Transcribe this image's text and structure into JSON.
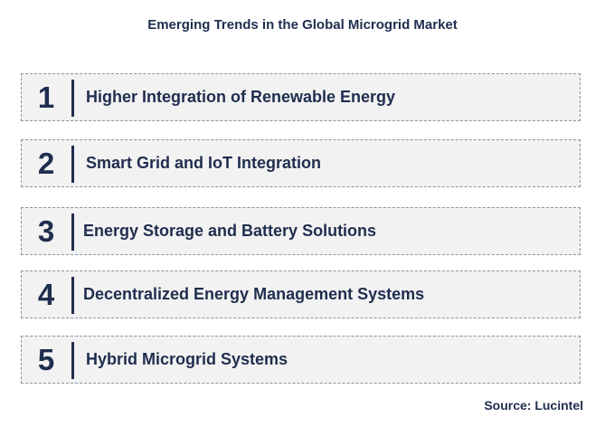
{
  "title": "Emerging Trends in the Global Microgrid Market",
  "trends": [
    {
      "number": "1",
      "label": "Higher Integration of Renewable Energy"
    },
    {
      "number": "2",
      "label": "Smart Grid and IoT Integration"
    },
    {
      "number": "3",
      "label": "Energy Storage and Battery Solutions"
    },
    {
      "number": "4",
      "label": "Decentralized Energy Management Systems"
    },
    {
      "number": "5",
      "label": "Hybrid Microgrid Systems"
    }
  ],
  "source": "Source: Lucintel",
  "colors": {
    "text": "#1f2d4e",
    "box_fill": "#f2f2f2",
    "box_border": "#8a95a8"
  }
}
